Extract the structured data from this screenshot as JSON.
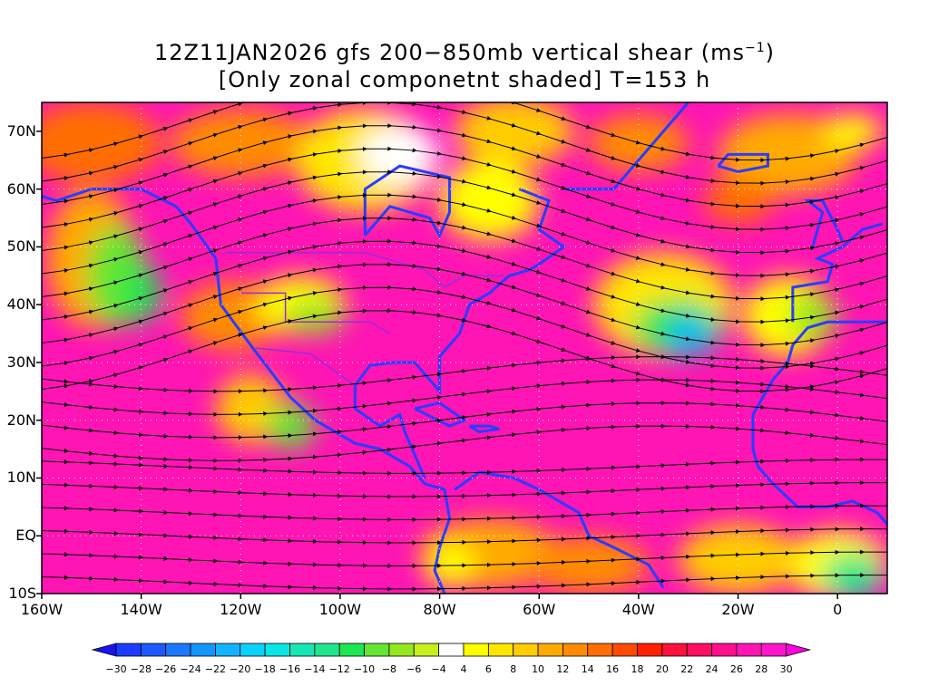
{
  "title": {
    "line1_prefix": "12Z11JAN2026 gfs 200−850mb vertical shear (ms",
    "line1_sup": "−1",
    "line1_suffix": ")",
    "line2": "[Only zonal componetnt shaded] T=153 h"
  },
  "map": {
    "projection": "cylindrical equidistant",
    "lon_range": [
      -160,
      10
    ],
    "lat_range": [
      -10,
      75
    ],
    "lat_ticks": [
      "70N",
      "60N",
      "50N",
      "40N",
      "30N",
      "20N",
      "10N",
      "EQ",
      "10S"
    ],
    "lon_ticks": [
      "160W",
      "140W",
      "120W",
      "100W",
      "80W",
      "60W",
      "40W",
      "20W",
      "0"
    ],
    "gridlines": "dotted",
    "field": "zonal component of 200-850mb vertical shear (shaded), shear streamlines (black)",
    "coastline_color": "#2a3cff",
    "boundary_color": "#9a2bd6"
  },
  "colorbar": {
    "labels": [
      "−30",
      "−28",
      "−26",
      "−24",
      "−22",
      "−20",
      "−18",
      "−16",
      "−14",
      "−12",
      "−10",
      "−8",
      "−6",
      "−4",
      "4",
      "6",
      "8",
      "10",
      "12",
      "14",
      "16",
      "18",
      "20",
      "22",
      "24",
      "26",
      "28",
      "30"
    ],
    "colors": [
      "#1a12f0",
      "#1e3cff",
      "#1c5aff",
      "#1a78ff",
      "#1496ff",
      "#12b4ff",
      "#0ad2ff",
      "#0ae6e6",
      "#18e6b4",
      "#1ee68c",
      "#1ee650",
      "#64e632",
      "#96e61e",
      "#c8f01e",
      "#ffffff",
      "#ffff00",
      "#ffe600",
      "#ffcc00",
      "#ffaa00",
      "#ff8c00",
      "#ff6e00",
      "#ff4a00",
      "#ff2000",
      "#ff0f3c",
      "#ff0f64",
      "#ff0f8c",
      "#ff14b4",
      "#ff14cc",
      "#ff00e0"
    ]
  }
}
